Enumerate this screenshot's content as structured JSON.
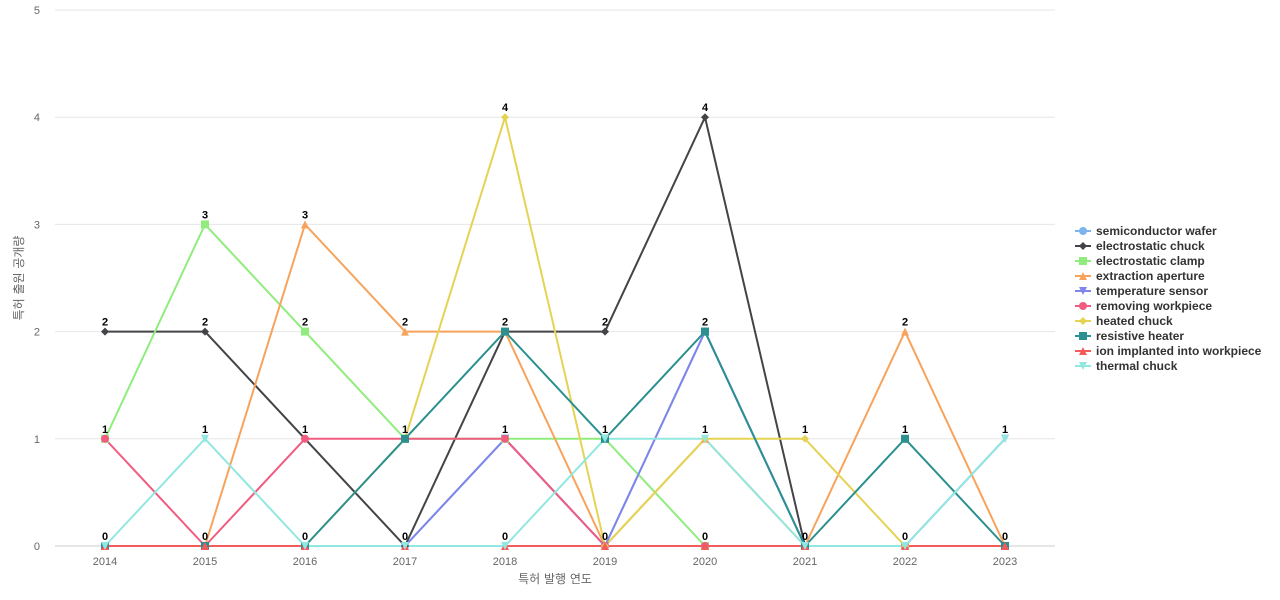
{
  "chart_data": {
    "type": "line",
    "title": "",
    "xlabel": "특허 발행 연도",
    "ylabel": "특허 출원 공개량",
    "ylim": [
      0,
      5
    ],
    "y_ticks": [
      0,
      1,
      2,
      3,
      4,
      5
    ],
    "categories": [
      "2014",
      "2015",
      "2016",
      "2017",
      "2018",
      "2019",
      "2020",
      "2021",
      "2022",
      "2023"
    ],
    "grid": "horizontal",
    "legend_position": "right",
    "series": [
      {
        "name": "semiconductor wafer",
        "color": "#7cb5ec",
        "marker": "circle",
        "values": [
          0,
          0,
          0,
          0,
          1,
          0,
          2,
          0,
          0,
          0
        ]
      },
      {
        "name": "electrostatic chuck",
        "color": "#434348",
        "marker": "diamond",
        "values": [
          2,
          2,
          1,
          0,
          2,
          2,
          4,
          0,
          0,
          0
        ]
      },
      {
        "name": "electrostatic clamp",
        "color": "#90ed7d",
        "marker": "square",
        "values": [
          1,
          3,
          2,
          1,
          1,
          1,
          0,
          0,
          0,
          0
        ]
      },
      {
        "name": "extraction aperture",
        "color": "#f7a35c",
        "marker": "triangle",
        "values": [
          0,
          0,
          3,
          2,
          2,
          0,
          1,
          0,
          2,
          0
        ]
      },
      {
        "name": "temperature sensor",
        "color": "#8085e9",
        "marker": "triangle-down",
        "values": [
          0,
          0,
          0,
          0,
          1,
          0,
          2,
          0,
          0,
          1
        ]
      },
      {
        "name": "removing workpiece",
        "color": "#f15c80",
        "marker": "circle",
        "values": [
          1,
          0,
          1,
          1,
          1,
          0,
          0,
          0,
          0,
          0
        ]
      },
      {
        "name": "heated chuck",
        "color": "#e4d354",
        "marker": "diamond",
        "values": [
          0,
          0,
          0,
          1,
          4,
          0,
          1,
          1,
          0,
          0
        ]
      },
      {
        "name": "resistive heater",
        "color": "#2b908f",
        "marker": "square",
        "values": [
          0,
          0,
          0,
          1,
          2,
          1,
          2,
          0,
          1,
          0
        ]
      },
      {
        "name": "ion implanted into workpiece",
        "color": "#f45b5b",
        "marker": "triangle",
        "values": [
          0,
          0,
          0,
          0,
          0,
          0,
          0,
          0,
          0,
          0
        ]
      },
      {
        "name": "thermal chuck",
        "color": "#91e8e1",
        "marker": "triangle-down",
        "values": [
          0,
          1,
          0,
          0,
          0,
          1,
          1,
          0,
          0,
          1
        ]
      }
    ],
    "data_labels": [
      {
        "category": "2014",
        "value": 2,
        "text": "2"
      },
      {
        "category": "2014",
        "value": 1,
        "text": "1"
      },
      {
        "category": "2014",
        "value": 0,
        "text": "0"
      },
      {
        "category": "2015",
        "value": 3,
        "text": "3"
      },
      {
        "category": "2015",
        "value": 2,
        "text": "2"
      },
      {
        "category": "2015",
        "value": 1,
        "text": "1"
      },
      {
        "category": "2015",
        "value": 0,
        "text": "0"
      },
      {
        "category": "2016",
        "value": 3,
        "text": "3"
      },
      {
        "category": "2016",
        "value": 2,
        "text": "2"
      },
      {
        "category": "2016",
        "value": 1,
        "text": "1"
      },
      {
        "category": "2016",
        "value": 0,
        "text": "0"
      },
      {
        "category": "2017",
        "value": 2,
        "text": "2"
      },
      {
        "category": "2017",
        "value": 1,
        "text": "1"
      },
      {
        "category": "2017",
        "value": 0,
        "text": "0"
      },
      {
        "category": "2018",
        "value": 4,
        "text": "4"
      },
      {
        "category": "2018",
        "value": 2,
        "text": "2"
      },
      {
        "category": "2018",
        "value": 1,
        "text": "1"
      },
      {
        "category": "2018",
        "value": 0,
        "text": "0"
      },
      {
        "category": "2019",
        "value": 2,
        "text": "2"
      },
      {
        "category": "2019",
        "value": 1,
        "text": "1"
      },
      {
        "category": "2019",
        "value": 0,
        "text": "0"
      },
      {
        "category": "2020",
        "value": 4,
        "text": "4"
      },
      {
        "category": "2020",
        "value": 2,
        "text": "2"
      },
      {
        "category": "2020",
        "value": 1,
        "text": "1"
      },
      {
        "category": "2020",
        "value": 0,
        "text": "0"
      },
      {
        "category": "2021",
        "value": 1,
        "text": "1"
      },
      {
        "category": "2021",
        "value": 0,
        "text": "0"
      },
      {
        "category": "2022",
        "value": 2,
        "text": "2"
      },
      {
        "category": "2022",
        "value": 1,
        "text": "1"
      },
      {
        "category": "2022",
        "value": 0,
        "text": "0"
      },
      {
        "category": "2023",
        "value": 1,
        "text": "1"
      },
      {
        "category": "2023",
        "value": 0,
        "text": "0"
      }
    ]
  }
}
